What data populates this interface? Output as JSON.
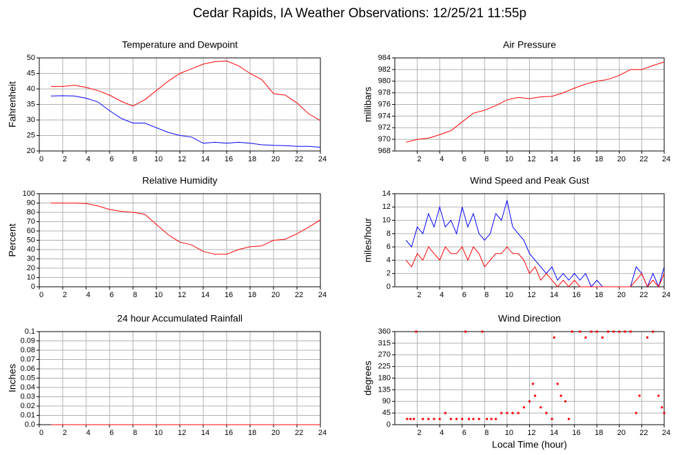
{
  "title": "Cedar Rapids, IA Weather Observations: 12/25/21 11:55p",
  "chart_data": [
    {
      "type": "line",
      "title": "Temperature and Dewpoint",
      "ylabel": "Fahrenheit",
      "xlim": [
        0,
        24
      ],
      "xticks": [
        0,
        2,
        4,
        6,
        8,
        10,
        12,
        14,
        16,
        18,
        20,
        22,
        24
      ],
      "ylim": [
        20,
        50
      ],
      "yticks": [
        20,
        25,
        30,
        35,
        40,
        45,
        50
      ],
      "grid": true,
      "x": [
        1,
        2,
        3,
        4,
        5,
        6,
        7,
        8,
        9,
        10,
        11,
        12,
        13,
        14,
        15,
        16,
        17,
        18,
        19,
        20,
        21,
        22,
        23,
        24
      ],
      "series": [
        {
          "color": "#ff0000",
          "values": [
            40.8,
            40.8,
            41.2,
            40.5,
            39.5,
            38,
            36,
            34.5,
            36.5,
            39.5,
            42.5,
            45,
            46.5,
            48,
            48.8,
            49,
            47.5,
            45,
            43,
            38.5,
            38,
            35.5,
            32,
            29.8
          ]
        },
        {
          "color": "#0000ff",
          "values": [
            37.7,
            37.8,
            37.7,
            37,
            35.8,
            33,
            30.5,
            29,
            29,
            27.5,
            26,
            25,
            24.5,
            22.5,
            22.8,
            22.5,
            22.8,
            22.5,
            22,
            21.8,
            21.7,
            21.5,
            21.5,
            21.2
          ]
        }
      ]
    },
    {
      "type": "line",
      "title": "Air Pressure",
      "ylabel": "millibars",
      "xlim": [
        0,
        24
      ],
      "xticks": [
        2,
        4,
        6,
        8,
        10,
        12,
        14,
        16,
        18,
        20,
        22,
        24
      ],
      "ylim": [
        968,
        984
      ],
      "yticks": [
        968,
        970,
        972,
        974,
        976,
        978,
        980,
        982,
        984
      ],
      "grid": true,
      "x": [
        1,
        2,
        3,
        4,
        5,
        6,
        7,
        8,
        9,
        10,
        11,
        12,
        13,
        14,
        15,
        16,
        17,
        18,
        19,
        20,
        21,
        22,
        23,
        24
      ],
      "series": [
        {
          "color": "#ff0000",
          "values": [
            969.5,
            970,
            970.2,
            970.8,
            971.5,
            973,
            974.5,
            975,
            975.8,
            976.8,
            977.2,
            977,
            977.3,
            977.4,
            978,
            978.8,
            979.5,
            980,
            980.3,
            981,
            982,
            982,
            982.7,
            983.3
          ]
        }
      ]
    },
    {
      "type": "line",
      "title": "Relative Humidity",
      "ylabel": "Percent",
      "xlim": [
        0,
        24
      ],
      "xticks": [
        0,
        2,
        4,
        6,
        8,
        10,
        12,
        14,
        16,
        18,
        20,
        22,
        24
      ],
      "ylim": [
        0,
        100
      ],
      "yticks": [
        0,
        10,
        20,
        30,
        40,
        50,
        60,
        70,
        80,
        90,
        100
      ],
      "grid": true,
      "x": [
        1,
        2,
        3,
        4,
        5,
        6,
        7,
        8,
        9,
        10,
        11,
        12,
        13,
        14,
        15,
        16,
        17,
        18,
        19,
        20,
        21,
        22,
        23,
        24
      ],
      "series": [
        {
          "color": "#ff0000",
          "values": [
            90,
            90,
            90,
            89.5,
            87,
            83,
            81,
            80,
            78,
            67,
            56,
            48,
            45,
            38,
            35,
            35,
            40,
            43,
            44,
            50,
            51,
            57,
            64,
            72
          ]
        }
      ]
    },
    {
      "type": "line",
      "title": "Wind Speed and Peak Gust",
      "ylabel": "miles/hour",
      "xlim": [
        0,
        24
      ],
      "xticks": [
        2,
        4,
        6,
        8,
        10,
        12,
        14,
        16,
        18,
        20,
        22,
        24
      ],
      "ylim": [
        0,
        14
      ],
      "yticks": [
        0,
        2,
        4,
        6,
        8,
        10,
        12,
        14
      ],
      "grid": true,
      "x": [
        1,
        1.5,
        2,
        2.5,
        3,
        3.5,
        4,
        4.5,
        5,
        5.5,
        6,
        6.5,
        7,
        7.5,
        8,
        8.5,
        9,
        9.5,
        10,
        10.5,
        11,
        11.5,
        12,
        12.5,
        13,
        13.5,
        14,
        14.5,
        15,
        15.5,
        16,
        16.5,
        17,
        17.5,
        18,
        18.5,
        19,
        19.5,
        20,
        20.5,
        21,
        21.5,
        22,
        22.5,
        23,
        23.5,
        24
      ],
      "series": [
        {
          "color": "#0000ff",
          "values": [
            7,
            6,
            9,
            8,
            11,
            9,
            12,
            9,
            10,
            8,
            12,
            9,
            11,
            8,
            7,
            8,
            11,
            10,
            13,
            9,
            8,
            7,
            5,
            4,
            3,
            2,
            3,
            1,
            2,
            1,
            2,
            1,
            2,
            0,
            1,
            0,
            0,
            0,
            0,
            0,
            0,
            3,
            2,
            0,
            2,
            0,
            3
          ]
        },
        {
          "color": "#ff0000",
          "values": [
            4,
            3,
            5,
            4,
            6,
            5,
            4,
            6,
            5,
            5,
            6,
            4,
            6,
            5,
            3,
            4,
            5,
            5,
            6,
            5,
            5,
            4,
            2,
            3,
            1,
            2,
            1,
            0,
            1,
            0,
            1,
            0,
            0,
            0,
            0,
            0,
            0,
            0,
            0,
            0,
            0,
            1,
            2,
            0,
            1,
            0,
            2
          ]
        }
      ]
    },
    {
      "type": "line",
      "title": "24 hour Accumulated Rainfall",
      "ylabel": "Inches",
      "xlim": [
        0,
        24
      ],
      "xticks": [
        0,
        2,
        4,
        6,
        8,
        10,
        12,
        14,
        16,
        18,
        20,
        22,
        24
      ],
      "ylim": [
        0,
        0.1
      ],
      "yticks": [
        {
          "value": 0,
          "label": "0.0"
        },
        0.01,
        0.02,
        0.03,
        0.04,
        0.05,
        0.06,
        0.07,
        0.08,
        0.09,
        {
          "value": 0.1,
          "label": "0.1"
        }
      ],
      "grid": true,
      "x": [
        1,
        24
      ],
      "series": [
        {
          "color": "#ff0000",
          "values": [
            0,
            0
          ]
        }
      ]
    },
    {
      "type": "scatter",
      "title": "Wind Direction",
      "ylabel": "degrees",
      "xlabel": "Local Time (hour)",
      "xlim": [
        0,
        24
      ],
      "xticks": [
        2,
        4,
        6,
        8,
        10,
        12,
        14,
        16,
        18,
        20,
        22,
        24
      ],
      "ylim": [
        0,
        360
      ],
      "yticks": [
        0,
        45,
        90,
        135,
        180,
        225,
        270,
        315,
        360
      ],
      "grid": true,
      "x": [
        1.1,
        1.4,
        1.7,
        1.9,
        2.5,
        3,
        3.5,
        4,
        4.5,
        5,
        5.5,
        6,
        6.3,
        6.6,
        7,
        7.5,
        7.8,
        8.2,
        8.6,
        9,
        9.5,
        10,
        10.5,
        11,
        11.5,
        12,
        12.3,
        12.5,
        13,
        13.5,
        14,
        14.2,
        14.5,
        14.8,
        15.2,
        15.5,
        15.8,
        16.5,
        17,
        17.5,
        18,
        18.5,
        19,
        19.5,
        20,
        20.5,
        21,
        21.5,
        21.8,
        22.5,
        23,
        23.5,
        23.8,
        24
      ],
      "series": [
        {
          "color": "#ff0000",
          "values": [
            22,
            22,
            22,
            360,
            22,
            22,
            22,
            22,
            45,
            22,
            22,
            22,
            360,
            22,
            22,
            22,
            360,
            22,
            22,
            22,
            45,
            45,
            45,
            45,
            67,
            90,
            158,
            112,
            67,
            45,
            22,
            337,
            158,
            112,
            90,
            22,
            360,
            360,
            337,
            360,
            360,
            337,
            360,
            360,
            360,
            360,
            360,
            45,
            112,
            337,
            360,
            112,
            67,
            45
          ]
        }
      ]
    }
  ]
}
